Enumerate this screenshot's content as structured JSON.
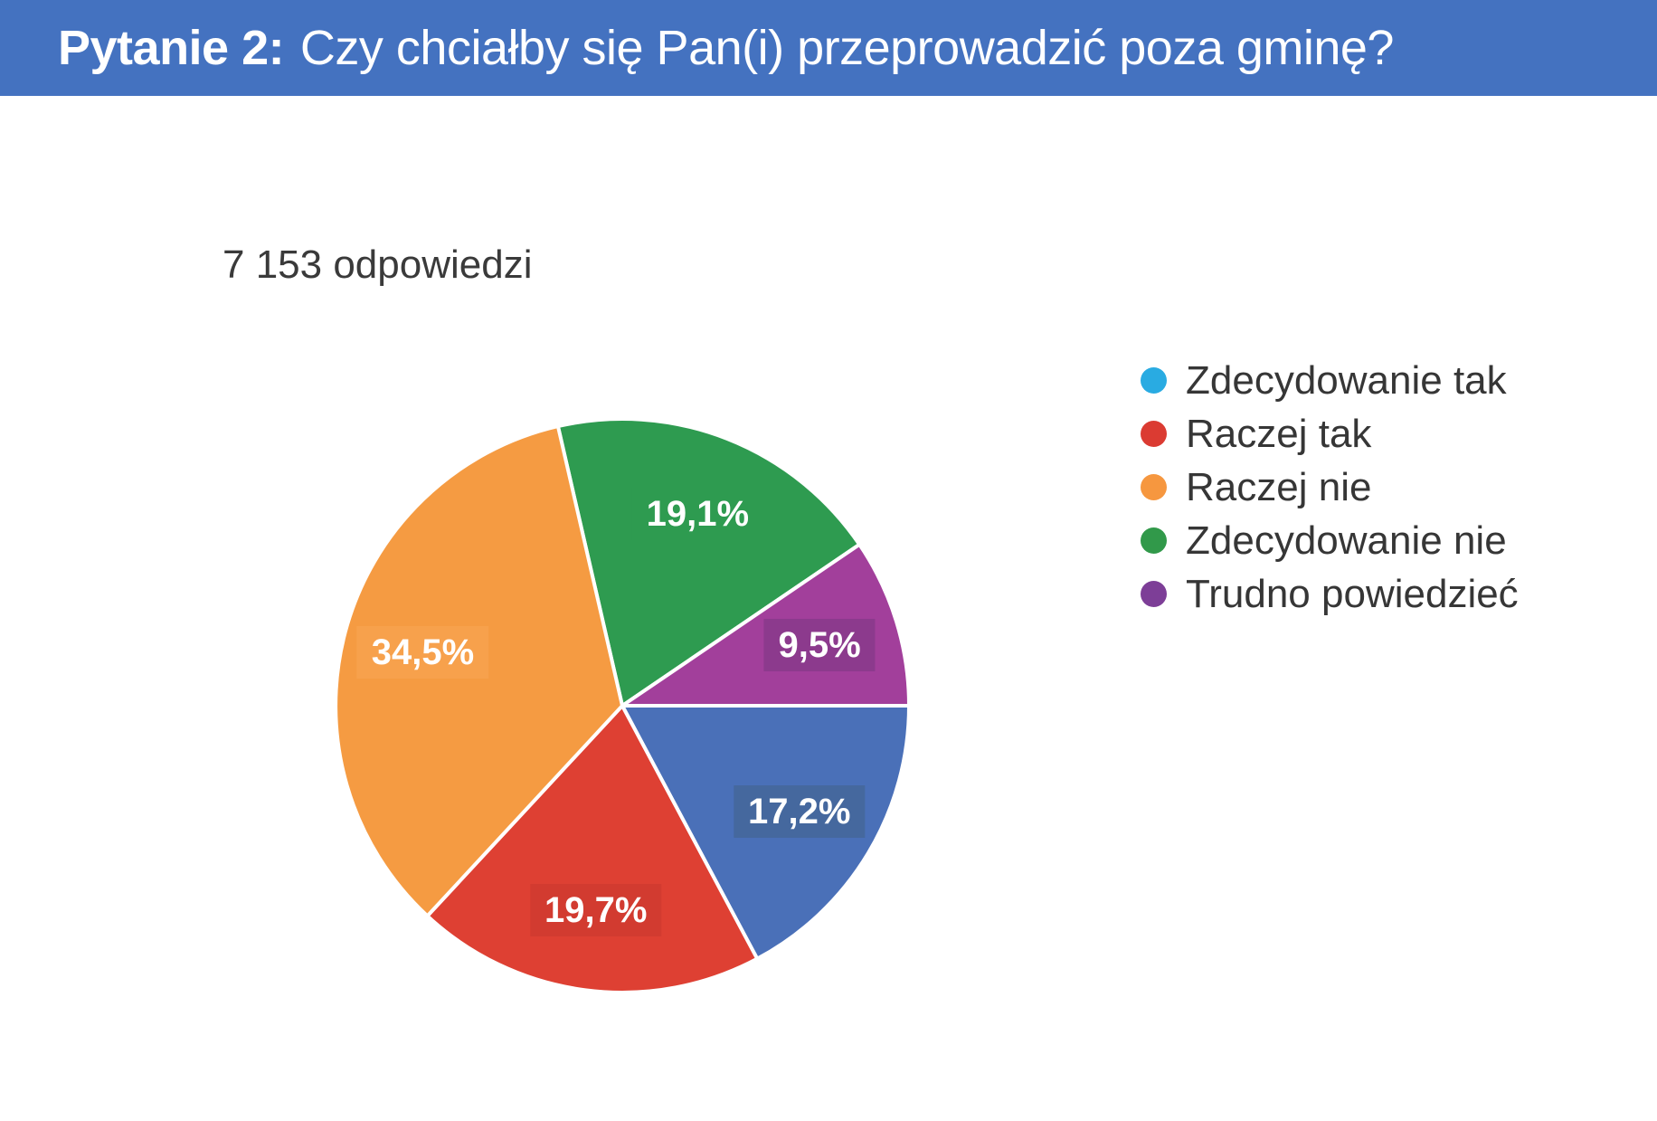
{
  "header": {
    "prefix": "Pytanie 2:",
    "question": "Czy chciałby się Pan(i) przeprowadzić poza gminę?",
    "bg_color": "#4472C0",
    "text_color": "#FFFFFF"
  },
  "subtitle": "7 153 odpowiedzi",
  "chart_data": {
    "type": "pie",
    "title": "Pytanie 2: Czy chciałby się Pan(i) przeprowadzić poza gminę?",
    "responses_label": "7 153 odpowiedzi",
    "legend_position": "right",
    "direction": "clockwise",
    "start_angle_compass_deg": -12.96,
    "draw_order": [
      3,
      4,
      0,
      1,
      2
    ],
    "series": [
      {
        "label": "Zdecydowanie tak",
        "value_pct": 17.2,
        "display": "17,2%",
        "slice_color": "#4A70B8",
        "label_box_color": "#45689E",
        "legend_color": "#29ABE2"
      },
      {
        "label": "Raczej tak",
        "value_pct": 19.7,
        "display": "19,7%",
        "slice_color": "#DE4033",
        "label_box_color": "#D23B30",
        "legend_color": "#DB3B32"
      },
      {
        "label": "Raczej nie",
        "value_pct": 34.5,
        "display": "34,5%",
        "slice_color": "#F59B42",
        "label_box_color": "#F7A14C",
        "legend_color": "#F6973F"
      },
      {
        "label": "Zdecydowanie nie",
        "value_pct": 19.1,
        "display": "19,1%",
        "slice_color": "#2E9B50",
        "label_box_color": "#2E9B50",
        "legend_color": "#31994A"
      },
      {
        "label": "Trudno powiedzieć",
        "value_pct": 9.5,
        "display": "9,5%",
        "slice_color": "#A23F9B",
        "label_box_color": "#8C3A8D",
        "legend_color": "#7D3E97"
      }
    ]
  }
}
